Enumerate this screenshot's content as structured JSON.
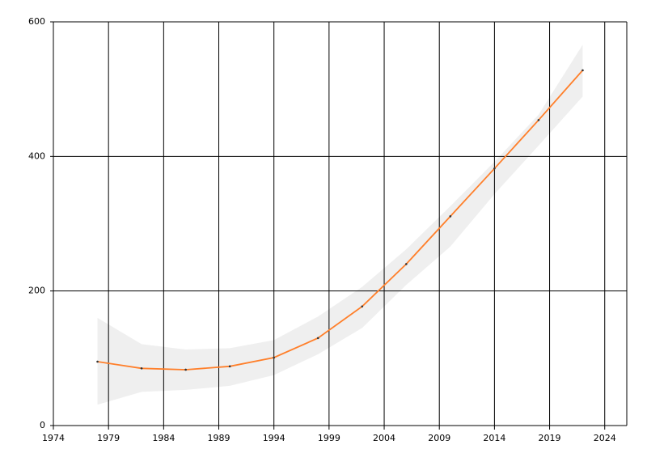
{
  "chart_data": {
    "type": "line",
    "x": [
      1978,
      1982,
      1986,
      1990,
      1994,
      1998,
      2002,
      2006,
      2010,
      2014,
      2018,
      2022
    ],
    "values": [
      95,
      85,
      83,
      88,
      101,
      130,
      177,
      240,
      311,
      382,
      454,
      528
    ],
    "color": "#ff7f2a",
    "band": {
      "lower": [
        31,
        50,
        53,
        59,
        75,
        106,
        145,
        209,
        266,
        344,
        416,
        489
      ],
      "upper": [
        160,
        121,
        113,
        115,
        127,
        162,
        206,
        262,
        326,
        392,
        462,
        566
      ],
      "color": "#efefef"
    },
    "xlim": [
      1974,
      2026
    ],
    "xticks": [
      1974,
      1979,
      1984,
      1989,
      1994,
      1999,
      2004,
      2009,
      2014,
      2019,
      2024
    ],
    "ylim": [
      0,
      600
    ],
    "yticks": [
      0,
      200,
      400,
      600
    ],
    "grid": true
  }
}
